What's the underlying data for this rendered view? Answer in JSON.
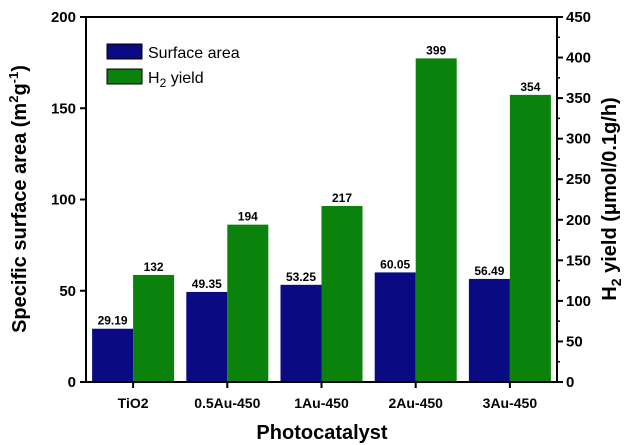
{
  "chart_data": {
    "type": "bar",
    "categories": [
      "TiO2",
      "0.5Au-450",
      "1Au-450",
      "2Au-450",
      "3Au-450"
    ],
    "xlabel": "Photocatalyst",
    "ylabel_left": {
      "main": "Specific surface area (m",
      "sup1": "2",
      "mid": "g",
      "sup2": "-1",
      "end": ")"
    },
    "ylabel_right": {
      "pre": "H",
      "sub": "2",
      "post": " yield (μmol/0.1g/h)"
    },
    "ylim_left": [
      0,
      200
    ],
    "ylim_right": [
      0,
      450
    ],
    "yticks_left": [
      0,
      50,
      100,
      150,
      200
    ],
    "yticks_right": [
      0,
      50,
      100,
      150,
      200,
      250,
      300,
      350,
      400,
      450
    ],
    "series": [
      {
        "name": "Surface area",
        "axis": "left",
        "color": "#0a0a82",
        "values": [
          29.19,
          49.35,
          53.25,
          60.05,
          56.49
        ],
        "labels": [
          "29.19",
          "49.35",
          "53.25",
          "60.05",
          "56.49"
        ]
      },
      {
        "name": "H2 yield",
        "legend_pre": "H",
        "legend_sub": "2",
        "legend_post": " yield",
        "axis": "right",
        "color": "#0b820b",
        "values": [
          132,
          194,
          217,
          399,
          354
        ],
        "labels": [
          "132",
          "194",
          "217",
          "399",
          "354"
        ]
      }
    ],
    "grid": false,
    "legend_position": "top-left"
  }
}
